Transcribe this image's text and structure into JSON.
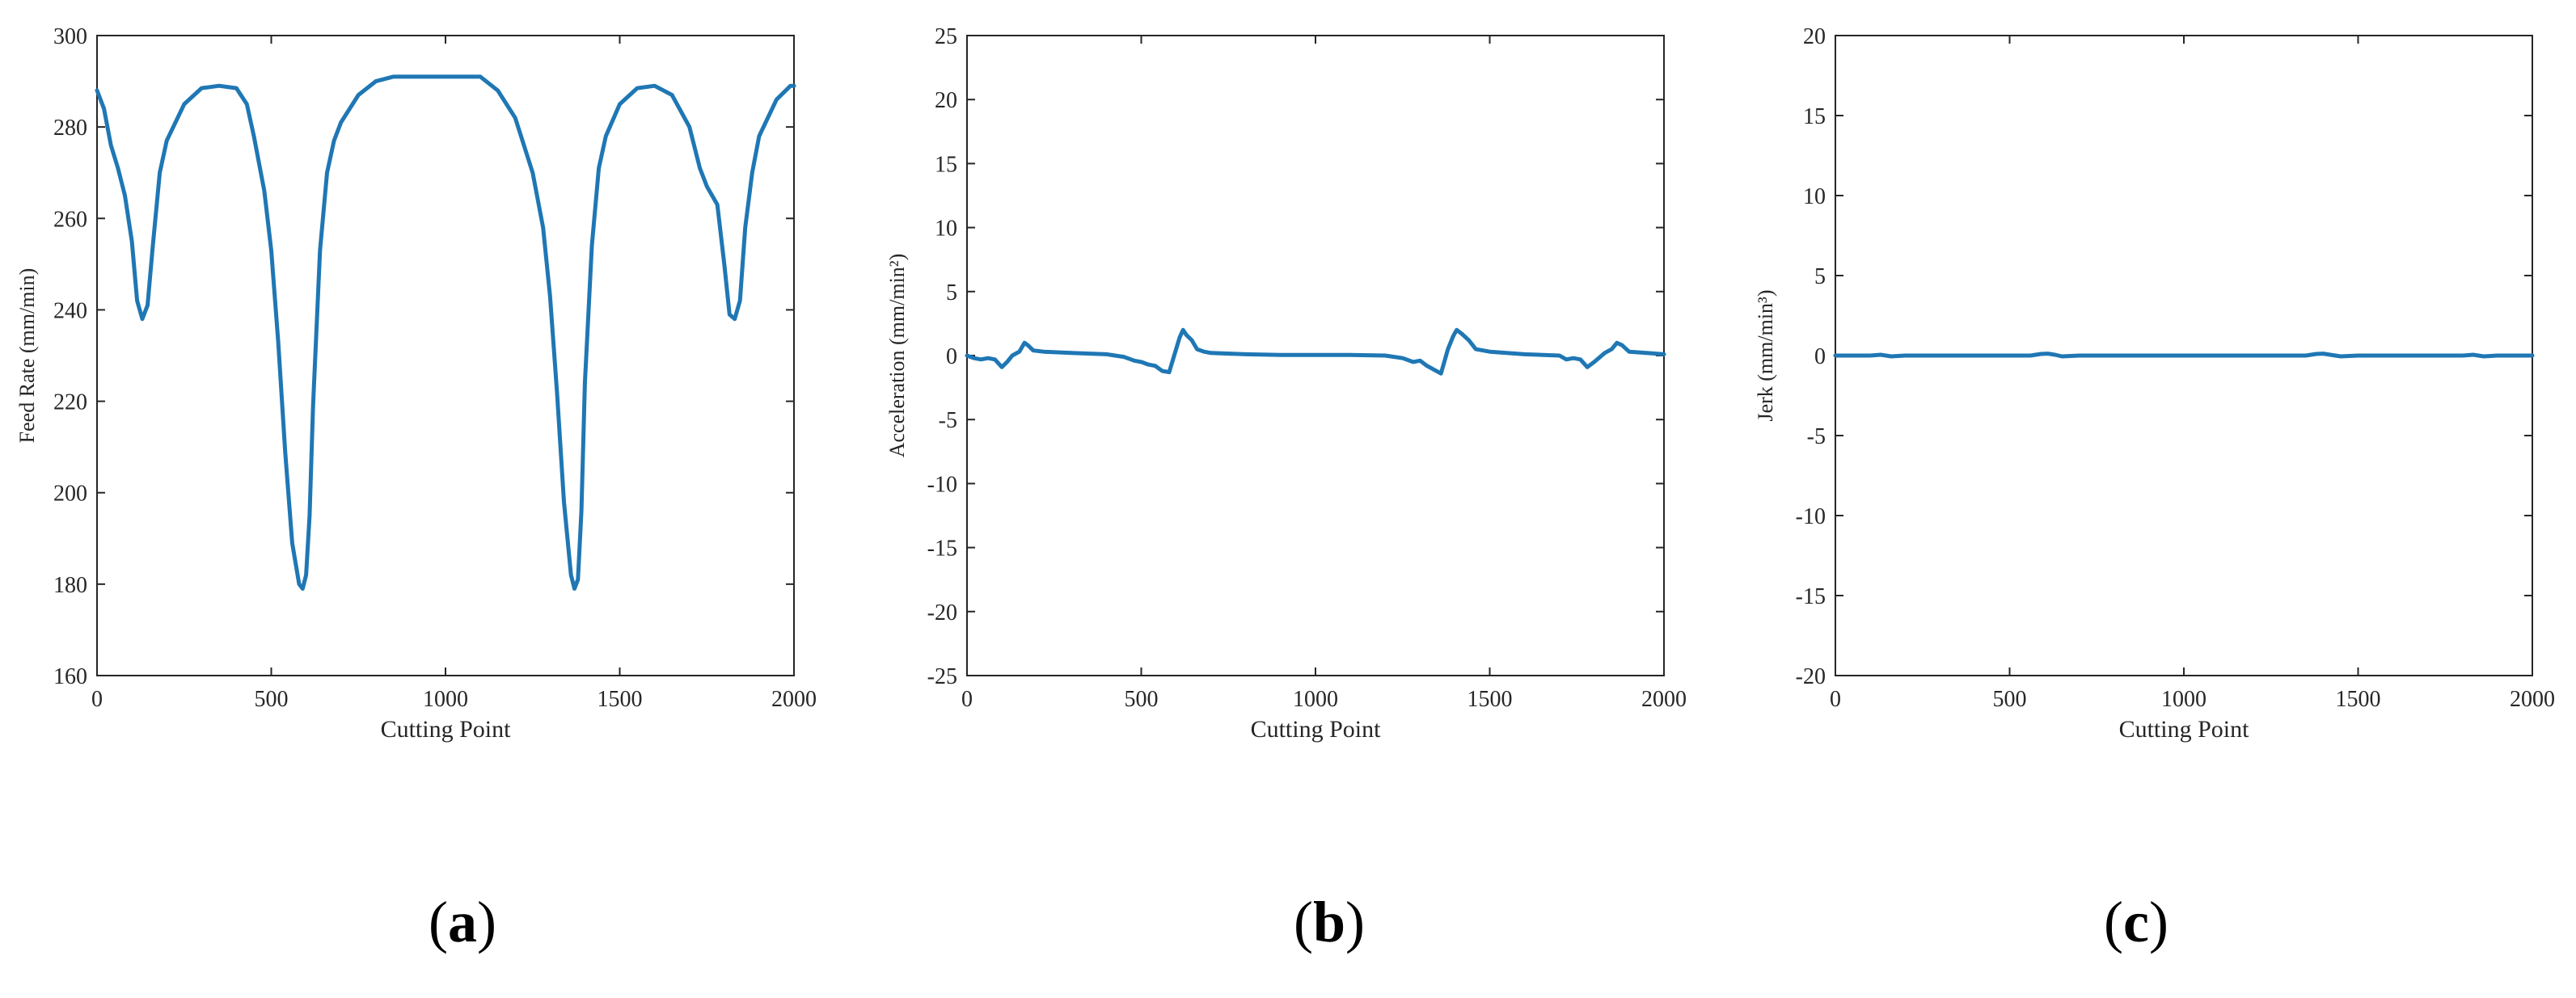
{
  "chart_data": [
    {
      "type": "line",
      "panel": "(a)",
      "panel_letter": "a",
      "xlabel": "Cutting Point",
      "ylabel": "Feed Rate (mm/min)",
      "xlim": [
        0,
        2000
      ],
      "ylim": [
        160,
        300
      ],
      "xticks": [
        0,
        500,
        1000,
        1500,
        2000
      ],
      "yticks": [
        160,
        180,
        200,
        220,
        240,
        260,
        280,
        300
      ],
      "grid": false,
      "series_color": "#1f77b4",
      "series": [
        {
          "x": [
            0,
            20,
            40,
            60,
            80,
            100,
            115,
            130,
            145,
            160,
            180,
            200,
            250,
            300,
            350,
            400,
            430,
            450,
            480,
            500,
            520,
            540,
            560,
            580,
            590,
            600,
            610,
            620,
            640,
            660,
            680,
            700,
            750,
            800,
            850,
            900,
            1000,
            1100,
            1150,
            1200,
            1250,
            1280,
            1300,
            1320,
            1340,
            1360,
            1370,
            1380,
            1390,
            1400,
            1420,
            1440,
            1460,
            1500,
            1550,
            1600,
            1650,
            1700,
            1730,
            1750,
            1780,
            1800,
            1815,
            1830,
            1845,
            1860,
            1880,
            1900,
            1950,
            1990,
            2000
          ],
          "y": [
            288,
            284,
            276,
            271,
            265,
            255,
            242,
            238,
            241,
            254,
            270,
            277,
            285,
            288.5,
            289,
            288.5,
            285,
            278,
            266,
            253,
            233,
            209,
            189,
            180,
            179,
            182,
            195,
            219,
            253,
            270,
            277,
            281,
            287,
            290,
            291,
            291,
            291,
            291,
            288,
            282,
            270,
            258,
            243,
            222,
            198,
            182,
            179,
            181,
            196,
            224,
            254,
            271,
            278,
            285,
            288.5,
            289,
            287,
            280,
            271,
            267,
            263,
            250,
            239,
            238,
            242,
            258,
            270,
            278,
            286,
            289,
            289
          ]
        }
      ]
    },
    {
      "type": "line",
      "panel": "(b)",
      "panel_letter": "b",
      "xlabel": "Cutting Point",
      "ylabel": "Acceleration (mm/min²)",
      "xlim": [
        0,
        2000
      ],
      "ylim": [
        -25,
        25
      ],
      "xticks": [
        0,
        500,
        1000,
        1500,
        2000
      ],
      "yticks": [
        -25,
        -20,
        -15,
        -10,
        -5,
        0,
        5,
        10,
        15,
        20,
        25
      ],
      "grid": false,
      "series_color": "#1f77b4",
      "series": [
        {
          "x": [
            0,
            20,
            40,
            60,
            80,
            100,
            115,
            130,
            150,
            165,
            175,
            190,
            220,
            300,
            400,
            450,
            480,
            500,
            520,
            540,
            560,
            580,
            600,
            610,
            620,
            630,
            645,
            660,
            680,
            700,
            800,
            900,
            1000,
            1100,
            1200,
            1250,
            1280,
            1300,
            1320,
            1340,
            1360,
            1380,
            1395,
            1405,
            1420,
            1440,
            1460,
            1500,
            1600,
            1700,
            1720,
            1740,
            1760,
            1780,
            1800,
            1830,
            1850,
            1865,
            1880,
            1900,
            1950,
            2000
          ],
          "y": [
            0,
            -0.2,
            -0.3,
            -0.2,
            -0.3,
            -0.9,
            -0.5,
            0,
            0.3,
            1,
            0.8,
            0.4,
            0.3,
            0.2,
            0.1,
            -0.1,
            -0.4,
            -0.5,
            -0.7,
            -0.8,
            -1.2,
            -1.3,
            0.5,
            1.4,
            2,
            1.6,
            1.2,
            0.5,
            0.3,
            0.2,
            0.1,
            0.05,
            0.05,
            0.05,
            0,
            -0.2,
            -0.5,
            -0.4,
            -0.8,
            -1.1,
            -1.4,
            0.5,
            1.5,
            2,
            1.7,
            1.2,
            0.5,
            0.3,
            0.1,
            0,
            -0.3,
            -0.2,
            -0.3,
            -0.9,
            -0.5,
            0.2,
            0.5,
            1,
            0.8,
            0.3,
            0.2,
            0.1
          ]
        }
      ]
    },
    {
      "type": "line",
      "panel": "(c)",
      "panel_letter": "c",
      "xlabel": "Cutting Point",
      "ylabel": "Jerk (mm/min³)",
      "xlim": [
        0,
        2000
      ],
      "ylim": [
        -20,
        20
      ],
      "xticks": [
        0,
        500,
        1000,
        1500,
        2000
      ],
      "yticks": [
        -20,
        -15,
        -10,
        -5,
        0,
        5,
        10,
        15,
        20
      ],
      "grid": false,
      "series_color": "#1f77b4",
      "series": [
        {
          "x": [
            0,
            50,
            100,
            130,
            160,
            200,
            300,
            400,
            500,
            560,
            590,
            610,
            630,
            650,
            700,
            800,
            900,
            1000,
            1100,
            1200,
            1300,
            1350,
            1380,
            1400,
            1420,
            1450,
            1500,
            1600,
            1700,
            1800,
            1830,
            1860,
            1900,
            2000
          ],
          "y": [
            0,
            0,
            0,
            0.05,
            -0.05,
            0,
            0,
            0,
            0,
            0,
            0.1,
            0.12,
            0.05,
            -0.05,
            0,
            0,
            0,
            0,
            0,
            0,
            0,
            0,
            0.1,
            0.12,
            0.05,
            -0.05,
            0,
            0,
            0,
            0,
            0.05,
            -0.05,
            0,
            0
          ]
        }
      ]
    }
  ]
}
